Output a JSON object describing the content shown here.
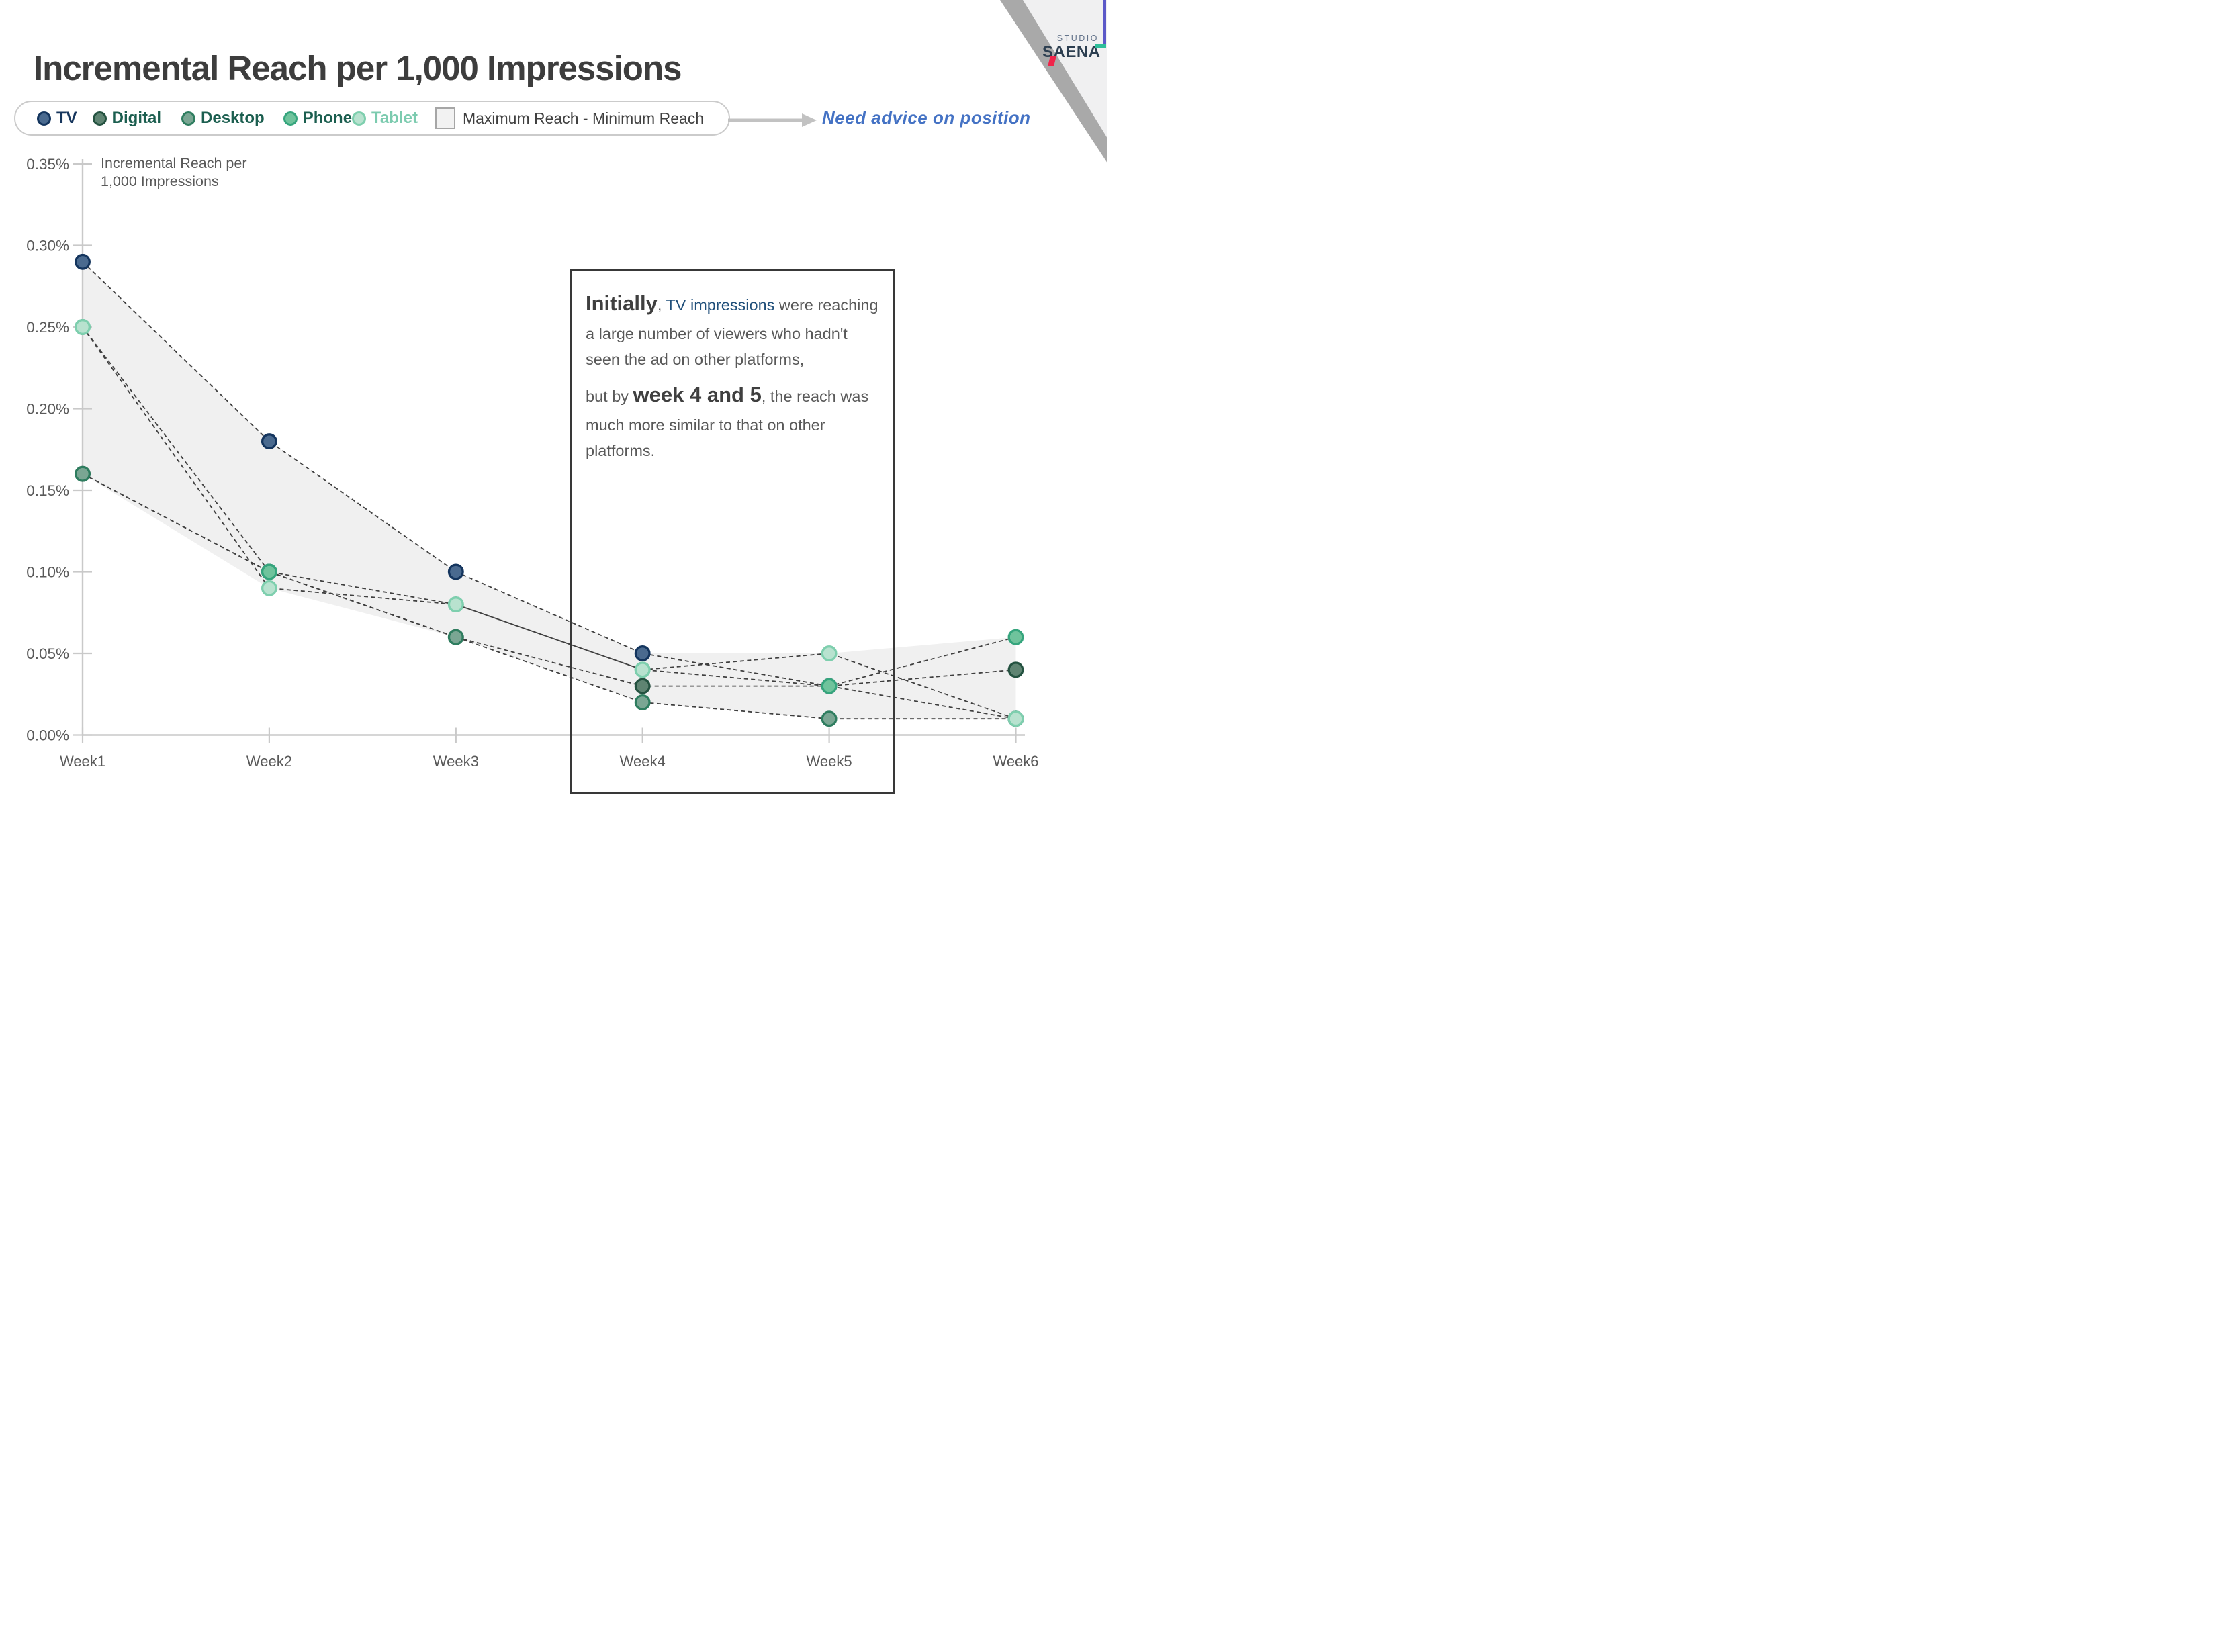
{
  "slide": {
    "title": "Incremental Reach per 1,000 Impressions"
  },
  "logo": {
    "line1": "STUDIO",
    "line2": "SAENA"
  },
  "note": {
    "text": "Need advice on position",
    "color": "#4472c4"
  },
  "legend": {
    "items": [
      {
        "label": "TV",
        "fill": "#4a6a8f",
        "stroke": "#14355e",
        "label_color": "#17365d"
      },
      {
        "label": "Digital",
        "fill": "#5f8472",
        "stroke": "#245240",
        "label_color": "#1b5e4f"
      },
      {
        "label": "Desktop",
        "fill": "#7aa693",
        "stroke": "#2e7d5f",
        "label_color": "#1b5e4f"
      },
      {
        "label": "Phone",
        "fill": "#6fc39c",
        "stroke": "#35a57d",
        "label_color": "#1b5e4f"
      },
      {
        "label": "Tablet",
        "fill": "#b8e2cf",
        "stroke": "#7ecfae",
        "label_color": "#7ccbaf"
      }
    ],
    "band_item": {
      "label": "Maximum Reach - Minimum Reach",
      "fill": "#f2f2f2",
      "stroke": "#a6a6a6",
      "label_color": "#404040"
    }
  },
  "annotation": {
    "paragraph1": [
      {
        "text": "Initially",
        "style": "big"
      },
      {
        "text": ", ",
        "style": "normal"
      },
      {
        "text": "TV impressions",
        "style": "tv"
      },
      {
        "text": " were reaching a large number of viewers who hadn't seen the ad on other platforms,",
        "style": "normal"
      }
    ],
    "paragraph2": [
      {
        "text": "but by ",
        "style": "normal"
      },
      {
        "text": "week 4 and 5",
        "style": "big"
      },
      {
        "text": ", the reach was much more similar to that on other platforms.",
        "style": "normal"
      }
    ]
  },
  "chart_data": {
    "type": "line",
    "x_categories": [
      "Week1",
      "Week2",
      "Week3",
      "Week4",
      "Week5",
      "Week6"
    ],
    "y_axis": {
      "title_line1": "Incremental Reach per",
      "title_line2": "1,000 Impressions",
      "tick_labels": [
        "0.35%",
        "0.30%",
        "0.25%",
        "0.20%",
        "0.15%",
        "0.10%",
        "0.05%",
        "0.00%"
      ],
      "tick_values": [
        0.35,
        0.3,
        0.25,
        0.2,
        0.15,
        0.1,
        0.05,
        0.0
      ],
      "min": 0,
      "max": 0.35
    },
    "series": [
      {
        "name": "TV",
        "values": [
          0.29,
          0.18,
          0.1,
          0.05,
          0.03,
          0.01
        ],
        "fill": "#4a6a8f",
        "stroke": "#14355e"
      },
      {
        "name": "Digital",
        "values": [
          0.16,
          0.1,
          0.06,
          0.03,
          0.03,
          0.04
        ],
        "fill": "#5f8472",
        "stroke": "#245240"
      },
      {
        "name": "Desktop",
        "values": [
          0.16,
          0.1,
          0.06,
          0.02,
          0.01,
          0.01
        ],
        "fill": "#7aa693",
        "stroke": "#2e7d5f"
      },
      {
        "name": "Phone",
        "values": [
          0.25,
          0.1,
          0.08,
          0.04,
          0.03,
          0.06
        ],
        "fill": "#6fc39c",
        "stroke": "#35a57d"
      },
      {
        "name": "Tablet",
        "values": [
          0.25,
          0.09,
          0.08,
          0.04,
          0.05,
          0.01
        ],
        "fill": "#b8e2cf",
        "stroke": "#7ecfae"
      }
    ],
    "band": {
      "name": "Maximum Reach - Minimum Reach",
      "max": [
        0.29,
        0.18,
        0.1,
        0.05,
        0.05,
        0.06
      ],
      "min": [
        0.16,
        0.09,
        0.06,
        0.02,
        0.01,
        0.01
      ],
      "fill": "#f0f0f0"
    },
    "line_style": {
      "color": "#3f3f3f",
      "dash": "6,4.5",
      "width": 1.8
    },
    "axis_color": "#c9c9c9",
    "text_color": "#595959",
    "legend_position": "top",
    "grid": false
  }
}
